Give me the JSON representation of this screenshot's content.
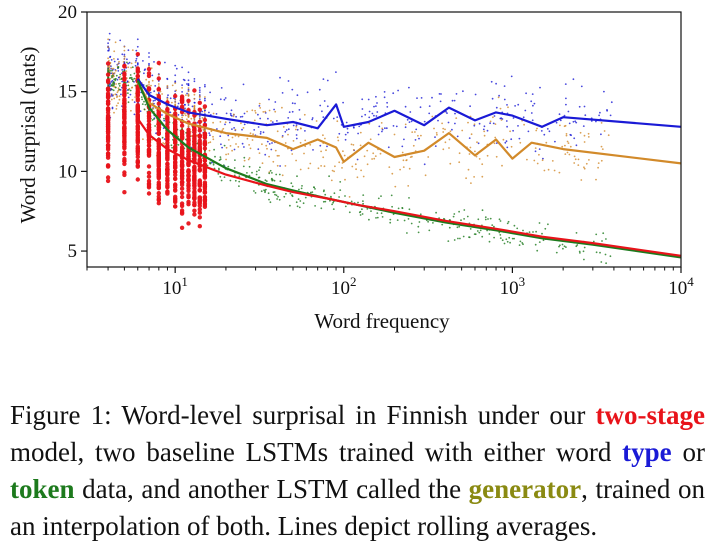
{
  "chart_data": {
    "type": "scatter",
    "xlabel": "Word frequency",
    "ylabel": "Word surprisal (nats)",
    "x_scale": "log",
    "xlim": [
      3,
      10000
    ],
    "ylim": [
      4,
      20
    ],
    "x_ticks": [
      {
        "base": "10",
        "exp": "1",
        "value": 10
      },
      {
        "base": "10",
        "exp": "2",
        "value": 100
      },
      {
        "base": "10",
        "exp": "3",
        "value": 1000
      },
      {
        "base": "10",
        "exp": "4",
        "value": 10000
      }
    ],
    "y_ticks": [
      5,
      10,
      15,
      20
    ],
    "grid": false,
    "series": [
      {
        "color": "#1a1ad6",
        "rolling_average": [
          [
            6,
            15.8
          ],
          [
            7,
            14.8
          ],
          [
            9,
            14.2
          ],
          [
            12,
            13.7
          ],
          [
            20,
            13.3
          ],
          [
            35,
            12.9
          ],
          [
            50,
            13.1
          ],
          [
            70,
            12.7
          ],
          [
            90,
            14.2
          ],
          [
            100,
            12.8
          ],
          [
            140,
            13.1
          ],
          [
            200,
            13.8
          ],
          [
            300,
            12.9
          ],
          [
            420,
            14.0
          ],
          [
            600,
            13.2
          ],
          [
            800,
            13.7
          ],
          [
            1000,
            13.5
          ],
          [
            1500,
            12.8
          ],
          [
            2000,
            13.4
          ],
          [
            10000,
            12.8
          ]
        ]
      },
      {
        "color": "#d28a2a",
        "rolling_average": [
          [
            6,
            15.6
          ],
          [
            7,
            14.3
          ],
          [
            9,
            13.6
          ],
          [
            12,
            13.0
          ],
          [
            20,
            12.4
          ],
          [
            35,
            12.1
          ],
          [
            50,
            11.4
          ],
          [
            70,
            12.0
          ],
          [
            90,
            11.5
          ],
          [
            100,
            10.6
          ],
          [
            140,
            11.8
          ],
          [
            200,
            10.9
          ],
          [
            300,
            11.3
          ],
          [
            420,
            12.4
          ],
          [
            600,
            11.0
          ],
          [
            800,
            12.0
          ],
          [
            1000,
            10.8
          ],
          [
            1300,
            11.8
          ],
          [
            2000,
            11.4
          ],
          [
            10000,
            10.5
          ]
        ]
      },
      {
        "color": "#1d7a1d",
        "rolling_average": [
          [
            6,
            15.7
          ],
          [
            7,
            14.0
          ],
          [
            9,
            12.6
          ],
          [
            12,
            11.5
          ],
          [
            20,
            10.2
          ],
          [
            35,
            9.2
          ],
          [
            50,
            8.8
          ],
          [
            80,
            8.3
          ],
          [
            120,
            7.9
          ],
          [
            200,
            7.4
          ],
          [
            400,
            6.8
          ],
          [
            800,
            6.3
          ],
          [
            1500,
            5.8
          ],
          [
            3000,
            5.4
          ],
          [
            10000,
            4.6
          ]
        ]
      },
      {
        "color": "#e8131a",
        "rolling_average": [
          [
            6,
            13.3
          ],
          [
            7,
            12.3
          ],
          [
            9,
            11.4
          ],
          [
            12,
            10.7
          ],
          [
            20,
            9.8
          ],
          [
            35,
            9.1
          ],
          [
            50,
            8.7
          ],
          [
            80,
            8.3
          ],
          [
            120,
            7.9
          ],
          [
            200,
            7.5
          ],
          [
            400,
            6.9
          ],
          [
            800,
            6.4
          ],
          [
            1500,
            5.9
          ],
          [
            3000,
            5.5
          ],
          [
            10000,
            4.7
          ]
        ]
      }
    ]
  },
  "caption": {
    "t1": "Figure 1:  Word-level surprisal in Finnish under our ",
    "two_stage": "two-stage",
    "t2": " model, two baseline LSTMs trained with either word ",
    "type": "type",
    "t3": " or ",
    "token": "token",
    "t4": " data, and another LSTM called the ",
    "generator": "generator",
    "t5": ", trained on an interpolation of both. Lines depict rolling averages."
  }
}
